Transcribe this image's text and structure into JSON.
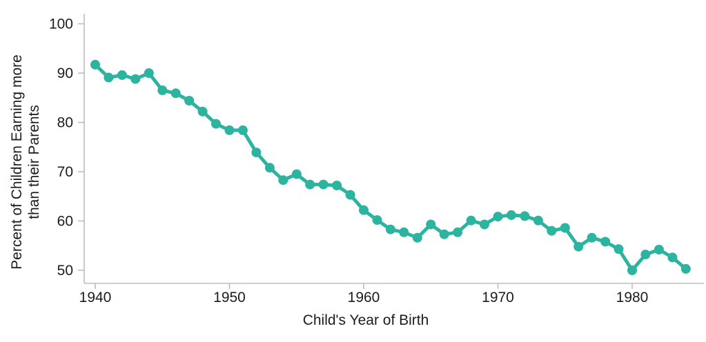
{
  "chart": {
    "accent_color": "#2db4a0",
    "axis_color": "#bdbdbd",
    "text_color": "#1c1c1c",
    "background_color": "#ffffff",
    "xlabel": "Child's Year of Birth",
    "ylabel_line1": "Percent of Children Earning more",
    "ylabel_line2": "than their Parents",
    "yticks": [
      50,
      60,
      70,
      80,
      90,
      100
    ],
    "xticks": [
      1940,
      1950,
      1960,
      1970,
      1980
    ]
  },
  "chart_data": {
    "type": "line",
    "title": "",
    "xlabel": "Child's Year of Birth",
    "ylabel": "Percent of Children Earning more than their Parents",
    "xlim": [
      1939,
      1985.5
    ],
    "ylim": [
      50,
      100
    ],
    "grid": false,
    "legend": "none",
    "marker": "circle",
    "series": [
      {
        "name": "Percent of children earning more than their parents",
        "x": [
          1940,
          1941,
          1942,
          1943,
          1944,
          1945,
          1946,
          1947,
          1948,
          1949,
          1950,
          1951,
          1952,
          1953,
          1954,
          1955,
          1956,
          1957,
          1958,
          1959,
          1960,
          1961,
          1962,
          1963,
          1964,
          1965,
          1966,
          1967,
          1968,
          1969,
          1970,
          1971,
          1972,
          1973,
          1974,
          1975,
          1976,
          1977,
          1978,
          1979,
          1980,
          1981,
          1982,
          1983,
          1984
        ],
        "y": [
          91.7,
          89.1,
          89.6,
          88.8,
          90.0,
          86.5,
          85.9,
          84.4,
          82.2,
          79.7,
          78.4,
          78.4,
          73.9,
          70.8,
          68.3,
          69.5,
          67.4,
          67.4,
          67.2,
          65.3,
          62.2,
          60.2,
          58.3,
          57.7,
          56.6,
          59.3,
          57.3,
          57.7,
          60.1,
          59.3,
          60.9,
          61.2,
          61.0,
          60.1,
          58.0,
          58.6,
          54.8,
          56.6,
          55.8,
          54.3,
          50.0,
          53.2,
          54.2,
          52.6,
          50.3
        ]
      }
    ]
  }
}
